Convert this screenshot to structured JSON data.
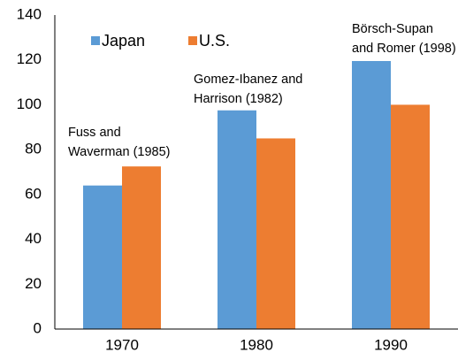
{
  "chart_data": {
    "type": "bar",
    "categories": [
      "1970",
      "1980",
      "1990"
    ],
    "series": [
      {
        "name": "Japan",
        "color": "#5b9bd5",
        "values": [
          64,
          97.5,
          119.5
        ]
      },
      {
        "name": "U.S.",
        "color": "#ed7d31",
        "values": [
          72.5,
          85,
          100
        ]
      }
    ],
    "ylim": [
      0,
      140
    ],
    "yticks": [
      0,
      20,
      40,
      60,
      80,
      100,
      120,
      140
    ],
    "grid": false,
    "legend": "top-left",
    "annotations": [
      {
        "lines": [
          "Fuss and",
          "Waverman (1985)"
        ]
      },
      {
        "lines": [
          "Gomez-Ibanez and",
          "Harrison (1982)"
        ]
      },
      {
        "lines": [
          "Börsch-Supan",
          "and Romer (1998)"
        ]
      }
    ]
  }
}
